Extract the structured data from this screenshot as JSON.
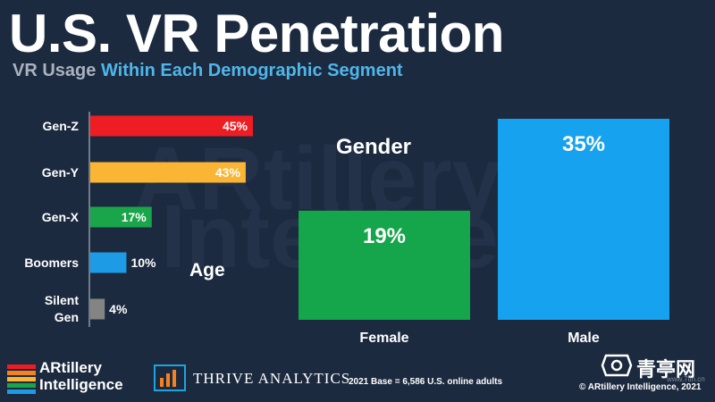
{
  "title": "U.S. VR Penetration",
  "subtitle": {
    "part1": "VR Usage",
    "part2": "Within Each Demographic Segment"
  },
  "watermark": {
    "line1": "ARtillery",
    "line2": "Intelligence"
  },
  "chart_data": [
    {
      "type": "bar",
      "orientation": "horizontal",
      "title": "Age",
      "categories": [
        "Gen-Z",
        "Gen-Y",
        "Gen-X",
        "Boomers",
        "Silent Gen"
      ],
      "values": [
        45,
        43,
        17,
        10,
        4
      ],
      "labels": [
        "45%",
        "43%",
        "17%",
        "10%",
        "4%"
      ],
      "colors": [
        "#ee1c23",
        "#fbb535",
        "#1aa54a",
        "#1d9ce5",
        "#848484"
      ],
      "xlim": [
        0,
        45
      ]
    },
    {
      "type": "bar",
      "orientation": "vertical",
      "title": "Gender",
      "categories": [
        "Female",
        "Male"
      ],
      "values": [
        19,
        35
      ],
      "labels": [
        "19%",
        "35%"
      ],
      "colors": [
        "#15a54a",
        "#17a2ef"
      ],
      "ylim": [
        0,
        35
      ]
    }
  ],
  "footer": {
    "logo_line1": "ARtillery",
    "logo_line2": "Intelligence",
    "thrive": "THRIVE ANALYTICS",
    "base_note": "2021 Base = 6,586 U.S. online adults",
    "copyright": "© ARtillery Intelligence, 2021",
    "qingting": "青亭网",
    "qingting_small": "www.7tin.cn"
  }
}
